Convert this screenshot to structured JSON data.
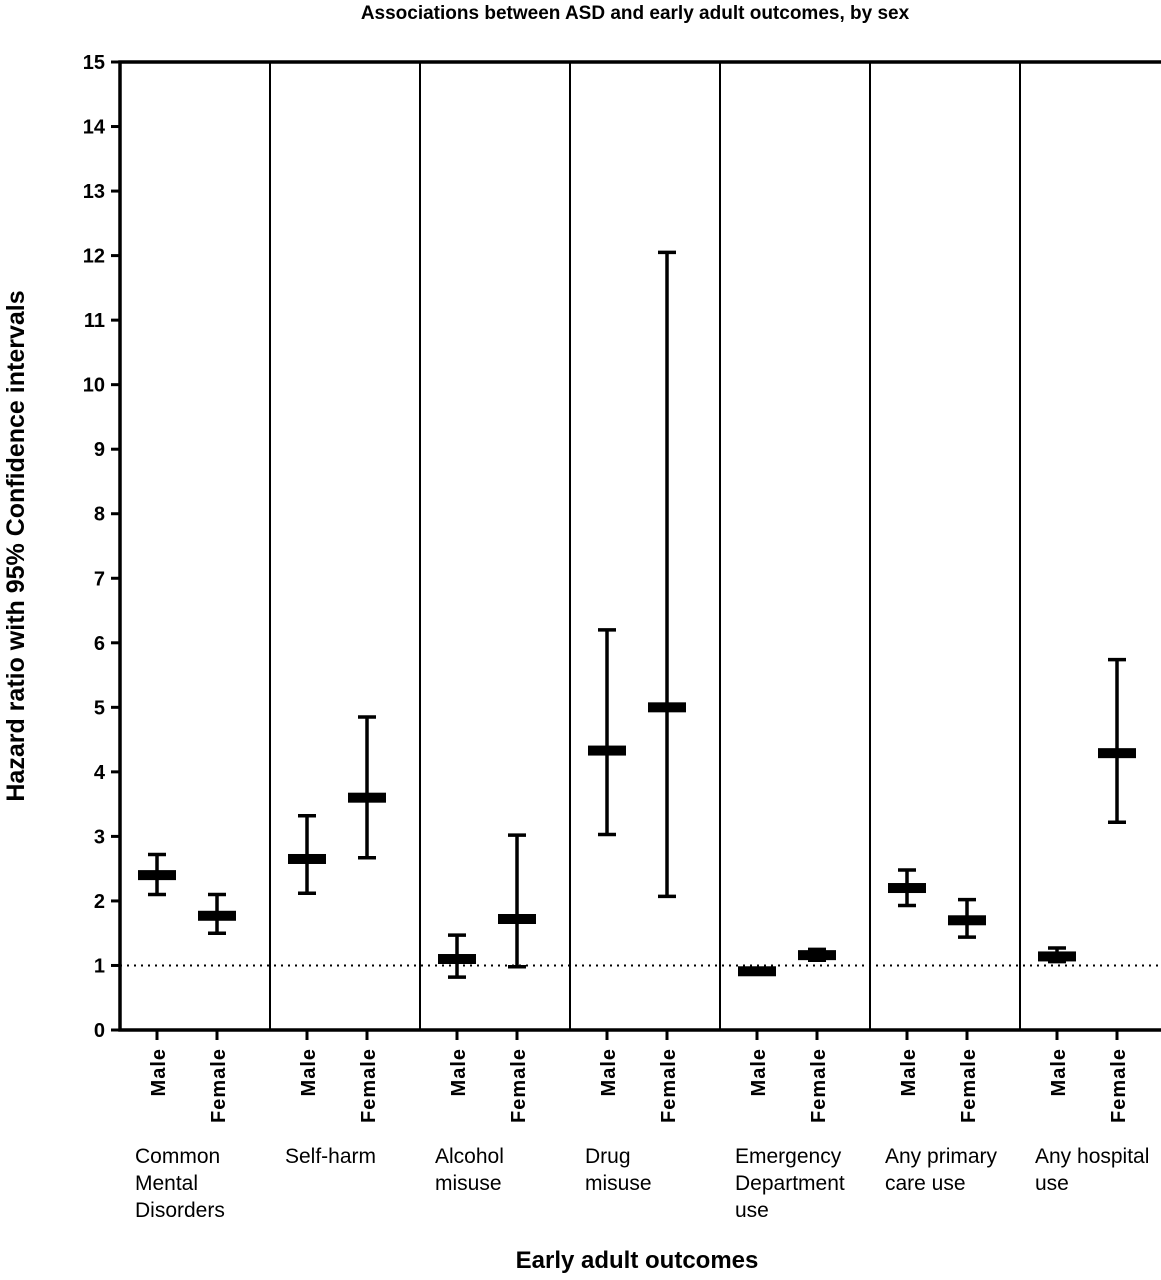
{
  "chart_data": {
    "type": "errorbar",
    "title": "Associations between ASD and early adult outcomes, by sex",
    "xlabel": "Early adult outcomes",
    "ylabel": "Hazard ratio with 95% Confidence intervals",
    "ylim": [
      0,
      15
    ],
    "yticks": [
      "0",
      "1",
      "2",
      "3",
      "4",
      "5",
      "6",
      "7",
      "8",
      "9",
      "10",
      "11",
      "12",
      "13",
      "14",
      "15"
    ],
    "reference_line": 1,
    "grid": false,
    "sexes": [
      "Male",
      "Female"
    ],
    "groups": [
      {
        "label": [
          "Common",
          "Mental",
          "Disorders"
        ],
        "points": [
          {
            "sex": "Male",
            "hr": 2.4,
            "lower": 2.1,
            "upper": 2.72
          },
          {
            "sex": "Female",
            "hr": 1.77,
            "lower": 1.5,
            "upper": 2.1
          }
        ]
      },
      {
        "label": [
          "Self-harm"
        ],
        "points": [
          {
            "sex": "Male",
            "hr": 2.65,
            "lower": 2.12,
            "upper": 3.32
          },
          {
            "sex": "Female",
            "hr": 3.6,
            "lower": 2.67,
            "upper": 4.85
          }
        ]
      },
      {
        "label": [
          "Alcohol",
          "misuse"
        ],
        "points": [
          {
            "sex": "Male",
            "hr": 1.1,
            "lower": 0.82,
            "upper": 1.47
          },
          {
            "sex": "Female",
            "hr": 1.72,
            "lower": 0.98,
            "upper": 3.02
          }
        ]
      },
      {
        "label": [
          "Drug",
          "misuse"
        ],
        "points": [
          {
            "sex": "Male",
            "hr": 4.33,
            "lower": 3.03,
            "upper": 6.2
          },
          {
            "sex": "Female",
            "hr": 5.0,
            "lower": 2.07,
            "upper": 12.05
          }
        ]
      },
      {
        "label": [
          "Emergency",
          "Department",
          "use"
        ],
        "points": [
          {
            "sex": "Male",
            "hr": 0.91,
            "lower": 0.87,
            "upper": 0.95
          },
          {
            "sex": "Female",
            "hr": 1.16,
            "lower": 1.08,
            "upper": 1.25
          }
        ]
      },
      {
        "label": [
          "Any primary",
          "care use"
        ],
        "points": [
          {
            "sex": "Male",
            "hr": 2.2,
            "lower": 1.93,
            "upper": 2.48
          },
          {
            "sex": "Female",
            "hr": 1.7,
            "lower": 1.44,
            "upper": 2.02
          }
        ]
      },
      {
        "label": [
          "Any hospital",
          "use"
        ],
        "points": [
          {
            "sex": "Male",
            "hr": 1.14,
            "lower": 1.06,
            "upper": 1.27
          },
          {
            "sex": "Female",
            "hr": 4.29,
            "lower": 3.22,
            "upper": 5.74
          }
        ]
      }
    ]
  }
}
